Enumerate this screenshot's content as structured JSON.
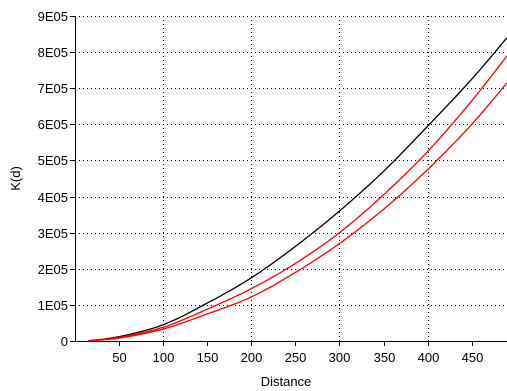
{
  "chart_data": {
    "type": "line",
    "title": "",
    "xlabel": "Distance",
    "ylabel": "K(d)",
    "xlim": [
      0,
      490
    ],
    "ylim": [
      0,
      900000
    ],
    "x_ticks": [
      50,
      100,
      150,
      200,
      250,
      300,
      350,
      400,
      450
    ],
    "y_ticks": [
      {
        "value": 0,
        "label": "0"
      },
      {
        "value": 100000,
        "label": "1E05"
      },
      {
        "value": 200000,
        "label": "2E05"
      },
      {
        "value": 300000,
        "label": "3E05"
      },
      {
        "value": 400000,
        "label": "4E05"
      },
      {
        "value": 500000,
        "label": "5E05"
      },
      {
        "value": 600000,
        "label": "6E05"
      },
      {
        "value": 700000,
        "label": "7E05"
      },
      {
        "value": 800000,
        "label": "8E05"
      },
      {
        "value": 900000,
        "label": "9E05"
      }
    ],
    "grid": true,
    "series": [
      {
        "color": "#000000",
        "x": [
          15,
          50,
          100,
          150,
          200,
          250,
          300,
          350,
          400,
          450,
          490
        ],
        "y": [
          1000,
          12000,
          45000,
          105000,
          175000,
          262000,
          360000,
          470000,
          595000,
          725000,
          840000
        ]
      },
      {
        "color": "#ff0000",
        "x": [
          15,
          50,
          100,
          150,
          200,
          250,
          300,
          350,
          400,
          450,
          490
        ],
        "y": [
          800,
          10000,
          38000,
          88000,
          145000,
          215000,
          300000,
          405000,
          525000,
          665000,
          790000
        ]
      },
      {
        "color": "#ff0000",
        "x": [
          15,
          50,
          100,
          150,
          200,
          250,
          300,
          350,
          400,
          450,
          490
        ],
        "y": [
          500,
          8000,
          33000,
          75000,
          122000,
          190000,
          270000,
          365000,
          475000,
          600000,
          715000
        ]
      }
    ]
  }
}
